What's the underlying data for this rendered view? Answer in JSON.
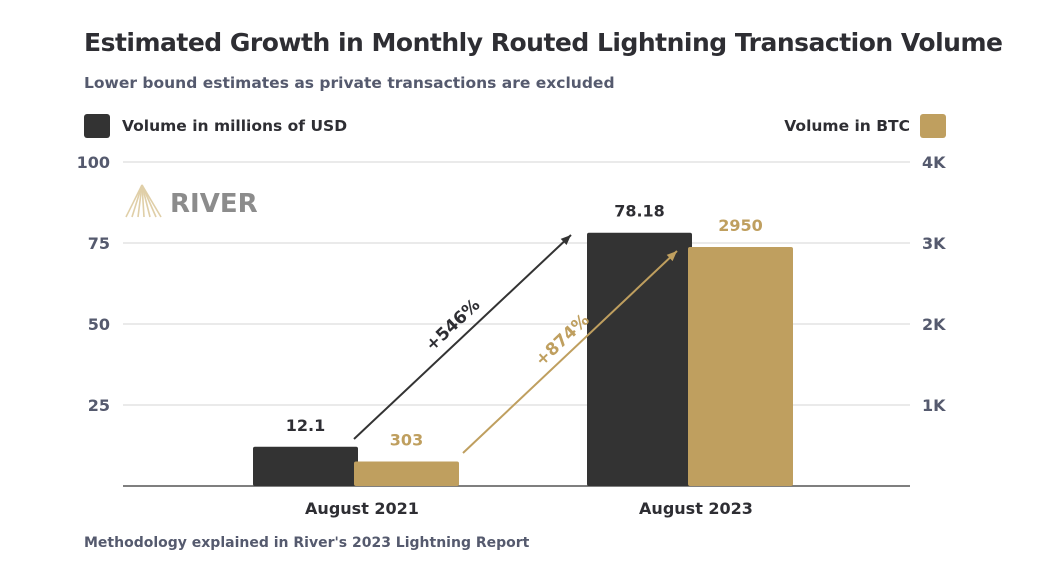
{
  "chart_data": {
    "type": "bar",
    "title": "Estimated Growth in Monthly Routed Lightning Transaction Volume",
    "subtitle": "Lower bound estimates as private transactions are excluded",
    "categories": [
      "August 2021",
      "August 2023"
    ],
    "series": [
      {
        "name": "Volume in millions of USD",
        "axis": "left",
        "values": [
          12.1,
          78.18
        ],
        "labels": [
          "12.1",
          "78.18"
        ],
        "color": "#333333"
      },
      {
        "name": "Volume in BTC",
        "axis": "right",
        "values": [
          303,
          2950
        ],
        "labels": [
          "303",
          "2950"
        ],
        "color": "#bf9f5f"
      }
    ],
    "left_axis": {
      "ylim": [
        0,
        100
      ],
      "ticks": [
        25,
        50,
        75,
        100
      ],
      "tick_labels": [
        "25",
        "50",
        "75",
        "100"
      ]
    },
    "right_axis": {
      "ylim": [
        0,
        4000
      ],
      "ticks": [
        1000,
        2000,
        3000,
        4000
      ],
      "tick_labels": [
        "1K",
        "2K",
        "3K",
        "4K"
      ]
    },
    "annotations": [
      {
        "text": "+546%",
        "series": 0
      },
      {
        "text": "+874%",
        "series": 1
      }
    ],
    "grid": true,
    "legend_placement": "top",
    "footnote": "Methodology explained in River's 2023 Lightning Report",
    "logo_text": "RIVER"
  }
}
